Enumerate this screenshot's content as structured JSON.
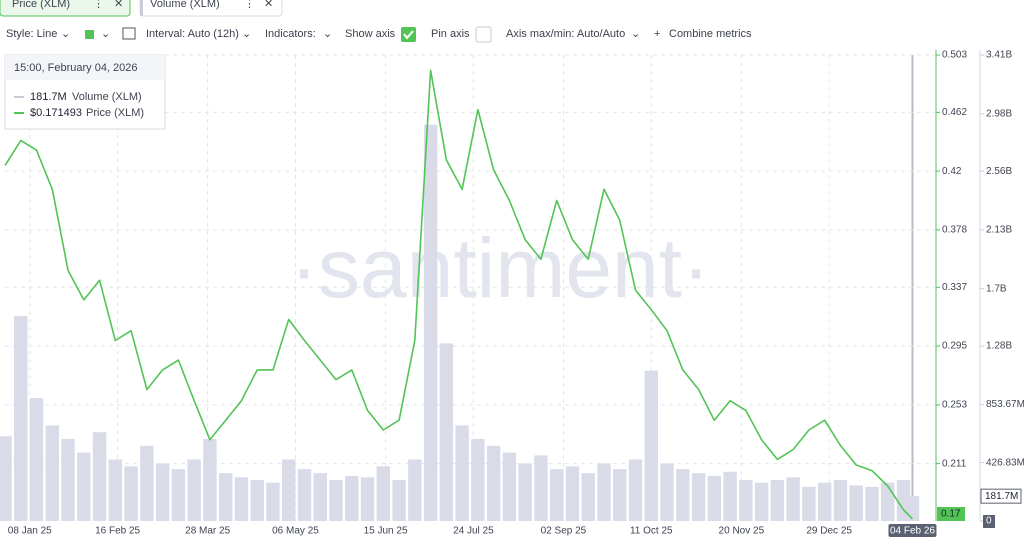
{
  "toolbar": {
    "style": "Style: Line",
    "interval": "Interval: Auto (12h)",
    "indicators": "Indicators:",
    "show_axis": "Show axis",
    "pin_axis": "Pin axis",
    "axis_maxmin": "Axis max/min: Auto/Auto",
    "combine": "Combine metrics"
  },
  "tooltip": {
    "title": "15:00, February 04, 2026",
    "volume": "181.7M",
    "price": "$0.171493"
  },
  "watermark": "·santiment·",
  "chart_data": {
    "type": "line",
    "x": [
      "2024-12-28",
      "2025-01-04",
      "2025-01-11",
      "2025-01-18",
      "2025-01-25",
      "2025-02-01",
      "2025-02-08",
      "2025-02-15",
      "2025-02-22",
      "2025-03-01",
      "2025-03-08",
      "2025-03-15",
      "2025-03-22",
      "2025-03-29",
      "2025-04-05",
      "2025-04-12",
      "2025-04-19",
      "2025-04-26",
      "2025-05-03",
      "2025-05-10",
      "2025-05-17",
      "2025-05-24",
      "2025-05-31",
      "2025-06-07",
      "2025-06-14",
      "2025-06-21",
      "2025-06-28",
      "2025-07-05",
      "2025-07-12",
      "2025-07-19",
      "2025-07-26",
      "2025-08-02",
      "2025-08-09",
      "2025-08-16",
      "2025-08-23",
      "2025-08-30",
      "2025-09-06",
      "2025-09-13",
      "2025-09-20",
      "2025-09-27",
      "2025-10-04",
      "2025-10-11",
      "2025-10-18",
      "2025-10-25",
      "2025-11-01",
      "2025-11-08",
      "2025-11-15",
      "2025-11-22",
      "2025-11-29",
      "2025-12-06",
      "2025-12-13",
      "2025-12-20",
      "2025-12-27",
      "2026-01-03",
      "2026-01-10",
      "2026-01-17",
      "2026-01-24",
      "2026-01-31",
      "2026-02-04"
    ],
    "xlim": [
      "2024-12-28",
      "2026-02-14"
    ],
    "xticks": [
      {
        "value": "2025-01-08",
        "label": "08 Jan 25"
      },
      {
        "value": "2025-02-16",
        "label": "16 Feb 25"
      },
      {
        "value": "2025-03-28",
        "label": "28 Mar 25"
      },
      {
        "value": "2025-05-06",
        "label": "06 May 25"
      },
      {
        "value": "2025-06-15",
        "label": "15 Jun 25"
      },
      {
        "value": "2025-07-24",
        "label": "24 Jul 25"
      },
      {
        "value": "2025-09-02",
        "label": "02 Sep 25"
      },
      {
        "value": "2025-10-11",
        "label": "11 Oct 25"
      },
      {
        "value": "2025-11-20",
        "label": "20 Nov 25"
      },
      {
        "value": "2025-12-29",
        "label": "29 Dec 25"
      },
      {
        "value": "2026-02-04",
        "label": "04 Feb 26"
      }
    ],
    "ylim": [
      0.17,
      0.503
    ],
    "yticks": [
      0.503,
      0.462,
      0.42,
      0.378,
      0.337,
      0.295,
      0.253,
      0.211
    ],
    "y2lim": [
      0,
      3410000000
    ],
    "y2ticks": [
      {
        "value": 3410000000,
        "label": "3.41B"
      },
      {
        "value": 2980000000,
        "label": "2.98B"
      },
      {
        "value": 2560000000,
        "label": "2.56B"
      },
      {
        "value": 2130000000,
        "label": "2.13B"
      },
      {
        "value": 1700000000,
        "label": "1.7B"
      },
      {
        "value": 1280000000,
        "label": "1.28B"
      },
      {
        "value": 853670000,
        "label": "853.67M"
      },
      {
        "value": 426830000,
        "label": "426.83M"
      },
      0
    ],
    "grid": true,
    "last_value_labels": [
      "0.17",
      "181.7M"
    ],
    "series": [
      {
        "name": "Price (XLM)",
        "color": "#52c455",
        "values": [
          0.424,
          0.442,
          0.435,
          0.407,
          0.349,
          0.328,
          0.342,
          0.299,
          0.306,
          0.264,
          0.278,
          0.285,
          0.256,
          0.228,
          0.242,
          0.256,
          0.278,
          0.278,
          0.314,
          0.299,
          0.285,
          0.271,
          0.278,
          0.249,
          0.235,
          0.242,
          0.299,
          0.492,
          0.428,
          0.407,
          0.464,
          0.421,
          0.399,
          0.371,
          0.357,
          0.399,
          0.371,
          0.357,
          0.407,
          0.385,
          0.335,
          0.321,
          0.306,
          0.278,
          0.264,
          0.242,
          0.256,
          0.249,
          0.228,
          0.214,
          0.221,
          0.235,
          0.242,
          0.224,
          0.21,
          0.206,
          0.195,
          0.178,
          0.171493
        ]
      },
      {
        "name": "Volume (XLM)",
        "type": "bar",
        "axis": "y2",
        "color": "#d9dbe8",
        "values": [
          620000000,
          1500000000,
          900000000,
          700000000,
          600000000,
          500000000,
          650000000,
          450000000,
          400000000,
          550000000,
          420000000,
          380000000,
          450000000,
          600000000,
          350000000,
          320000000,
          300000000,
          280000000,
          450000000,
          380000000,
          350000000,
          300000000,
          330000000,
          320000000,
          400000000,
          300000000,
          450000000,
          2900000000,
          1300000000,
          700000000,
          600000000,
          550000000,
          500000000,
          420000000,
          480000000,
          380000000,
          400000000,
          350000000,
          420000000,
          380000000,
          450000000,
          1100000000,
          420000000,
          380000000,
          350000000,
          330000000,
          360000000,
          300000000,
          280000000,
          300000000,
          320000000,
          250000000,
          280000000,
          300000000,
          260000000,
          250000000,
          280000000,
          300000000,
          181700000
        ]
      }
    ]
  }
}
